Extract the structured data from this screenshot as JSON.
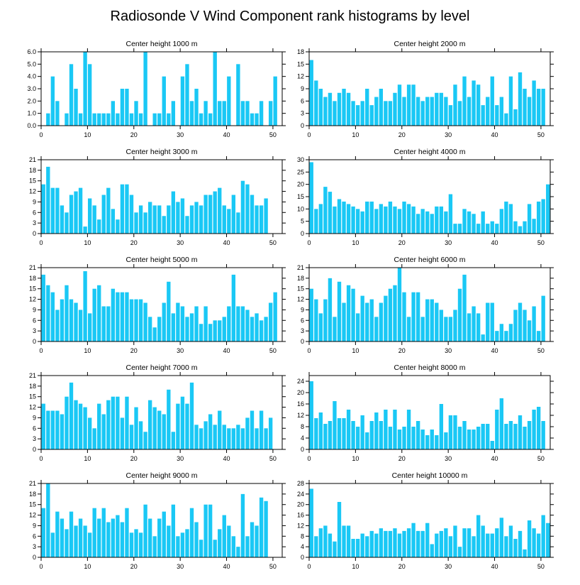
{
  "title": "Radiosonde V Wind Component rank histograms by level",
  "colors": {
    "bar": "#1ac8f5",
    "axis": "#000000"
  },
  "chart_data": [
    {
      "type": "bar",
      "title": "Center height 1000 m",
      "xlim": [
        0,
        52
      ],
      "ylim": [
        0,
        6
      ],
      "xticks": [
        0,
        10,
        20,
        30,
        40,
        50
      ],
      "xtick_labels": [
        "0",
        "10",
        "20",
        "30",
        "40",
        "50"
      ],
      "yticks": [
        0,
        1,
        2,
        3,
        4,
        5,
        6
      ],
      "ytick_labels": [
        "0.0",
        "1.0",
        "2.0",
        "3.0",
        "4.0",
        "5.0",
        "6.0"
      ],
      "values": [
        0,
        1,
        4,
        2,
        0,
        1,
        5,
        3,
        1,
        6,
        5,
        1,
        1,
        1,
        1,
        2,
        1,
        3,
        3,
        1,
        2,
        1,
        6,
        0,
        1,
        1,
        4,
        1,
        2,
        0,
        4,
        5,
        2,
        3,
        1,
        2,
        1,
        6,
        2,
        2,
        4,
        0,
        5,
        2,
        2,
        1,
        1,
        2,
        0,
        2,
        4,
        0
      ]
    },
    {
      "type": "bar",
      "title": "Center height 2000 m",
      "xlim": [
        0,
        52
      ],
      "ylim": [
        0,
        18
      ],
      "xticks": [
        0,
        10,
        20,
        30,
        40,
        50
      ],
      "xtick_labels": [
        "0",
        "10",
        "20",
        "30",
        "40",
        "50"
      ],
      "yticks": [
        0,
        3,
        6,
        9,
        12,
        15,
        18
      ],
      "ytick_labels": [
        "0",
        "3",
        "6",
        "9",
        "12",
        "15",
        "18"
      ],
      "values": [
        16,
        11,
        9,
        7,
        8,
        6,
        8,
        9,
        8,
        6,
        5,
        6,
        9,
        5,
        7,
        9,
        6,
        6,
        8,
        10,
        7,
        10,
        10,
        7,
        6,
        7,
        7,
        8,
        8,
        7,
        5,
        10,
        6,
        12,
        7,
        11,
        10,
        5,
        7,
        12,
        5,
        7,
        3,
        12,
        4,
        13,
        9,
        7,
        11,
        9,
        9
      ]
    },
    {
      "type": "bar",
      "title": "Center height 3000 m",
      "xlim": [
        0,
        52
      ],
      "ylim": [
        0,
        21
      ],
      "xticks": [
        0,
        10,
        20,
        30,
        40,
        50
      ],
      "xtick_labels": [
        "0",
        "10",
        "20",
        "30",
        "40",
        "50"
      ],
      "yticks": [
        0,
        3,
        6,
        9,
        12,
        15,
        18,
        21
      ],
      "ytick_labels": [
        "0",
        "3",
        "6",
        "9",
        "12",
        "15",
        "18",
        "21"
      ],
      "values": [
        14,
        19,
        13,
        13,
        8,
        6,
        11,
        12,
        13,
        2,
        10,
        8,
        4,
        11,
        13,
        7,
        4,
        14,
        14,
        11,
        6,
        8,
        6,
        9,
        8,
        8,
        5,
        8,
        12,
        9,
        10,
        5,
        8,
        9,
        8,
        11,
        11,
        12,
        13,
        8,
        7,
        11,
        6,
        15,
        14,
        11,
        8,
        8,
        10
      ]
    },
    {
      "type": "bar",
      "title": "Center height 4000 m",
      "xlim": [
        0,
        52
      ],
      "ylim": [
        0,
        30
      ],
      "xticks": [
        0,
        10,
        20,
        30,
        40,
        50
      ],
      "xtick_labels": [
        "0",
        "10",
        "20",
        "30",
        "40",
        "50"
      ],
      "yticks": [
        0,
        5,
        10,
        15,
        20,
        25,
        30
      ],
      "ytick_labels": [
        "0",
        "5",
        "10",
        "15",
        "20",
        "25",
        "30"
      ],
      "values": [
        29,
        10,
        12,
        19,
        17,
        11,
        14,
        13,
        12,
        11,
        10,
        9,
        13,
        13,
        10,
        12,
        11,
        13,
        11,
        10,
        13,
        12,
        11,
        8,
        10,
        9,
        8,
        11,
        11,
        9,
        16,
        4,
        4,
        10,
        9,
        8,
        4,
        9,
        4,
        5,
        4,
        10,
        13,
        12,
        5,
        3,
        5,
        12,
        6,
        13,
        14,
        20
      ]
    },
    {
      "type": "bar",
      "title": "Center height 5000 m",
      "xlim": [
        0,
        52
      ],
      "ylim": [
        0,
        21
      ],
      "xticks": [
        0,
        10,
        20,
        30,
        40,
        50
      ],
      "xtick_labels": [
        "0",
        "10",
        "20",
        "30",
        "40",
        "50"
      ],
      "yticks": [
        0,
        3,
        6,
        9,
        12,
        15,
        18,
        21
      ],
      "ytick_labels": [
        "0",
        "3",
        "6",
        "9",
        "12",
        "15",
        "18",
        "21"
      ],
      "values": [
        19,
        16,
        14,
        9,
        12,
        16,
        12,
        11,
        9,
        20,
        8,
        15,
        16,
        10,
        10,
        15,
        14,
        14,
        14,
        12,
        12,
        12,
        11,
        7,
        4,
        7,
        11,
        17,
        8,
        11,
        10,
        7,
        8,
        10,
        5,
        10,
        5,
        6,
        6,
        7,
        10,
        19,
        10,
        10,
        9,
        7,
        8,
        6,
        7,
        11,
        14
      ]
    },
    {
      "type": "bar",
      "title": "Center height 6000 m",
      "xlim": [
        0,
        52
      ],
      "ylim": [
        0,
        21
      ],
      "xticks": [
        0,
        10,
        20,
        30,
        40,
        50
      ],
      "xtick_labels": [
        "0",
        "10",
        "20",
        "30",
        "40",
        "50"
      ],
      "yticks": [
        0,
        3,
        6,
        9,
        12,
        15,
        18,
        21
      ],
      "ytick_labels": [
        "0",
        "3",
        "6",
        "9",
        "12",
        "15",
        "18",
        "21"
      ],
      "values": [
        15,
        12,
        8,
        12,
        18,
        7,
        17,
        11,
        16,
        15,
        8,
        13,
        11,
        12,
        7,
        11,
        13,
        15,
        16,
        21,
        14,
        7,
        14,
        14,
        7,
        12,
        12,
        11,
        9,
        7,
        7,
        9,
        15,
        19,
        8,
        10,
        8,
        2,
        11,
        11,
        3,
        5,
        3,
        5,
        9,
        11,
        9,
        6,
        10,
        3,
        13
      ]
    },
    {
      "type": "bar",
      "title": "Center height 7000 m",
      "xlim": [
        0,
        52
      ],
      "ylim": [
        0,
        21
      ],
      "xticks": [
        0,
        10,
        20,
        30,
        40,
        50
      ],
      "xtick_labels": [
        "0",
        "10",
        "20",
        "30",
        "40",
        "50"
      ],
      "yticks": [
        0,
        3,
        6,
        9,
        12,
        15,
        18,
        21
      ],
      "ytick_labels": [
        "0",
        "3",
        "6",
        "9",
        "12",
        "15",
        "18",
        "21"
      ],
      "values": [
        13,
        11,
        11,
        11,
        10,
        15,
        19,
        14,
        13,
        12,
        9,
        6,
        13,
        10,
        14,
        15,
        15,
        9,
        15,
        7,
        12,
        8,
        5,
        14,
        12,
        11,
        10,
        17,
        5,
        13,
        15,
        13,
        19,
        7,
        6,
        8,
        10,
        7,
        11,
        7,
        6,
        6,
        7,
        6,
        9,
        11,
        6,
        11,
        6,
        9
      ]
    },
    {
      "type": "bar",
      "title": "Center height 8000 m",
      "xlim": [
        0,
        52
      ],
      "ylim": [
        0,
        26
      ],
      "xticks": [
        0,
        10,
        20,
        30,
        40,
        50
      ],
      "xtick_labels": [
        "0",
        "10",
        "20",
        "30",
        "40",
        "50"
      ],
      "yticks": [
        0,
        4,
        8,
        12,
        16,
        20,
        24
      ],
      "ytick_labels": [
        "0",
        "4",
        "8",
        "12",
        "16",
        "20",
        "24"
      ],
      "values": [
        24,
        11,
        13,
        9,
        10,
        17,
        11,
        11,
        14,
        10,
        8,
        12,
        6,
        10,
        13,
        10,
        14,
        8,
        14,
        7,
        8,
        14,
        8,
        10,
        7,
        5,
        7,
        5,
        16,
        6,
        12,
        12,
        8,
        10,
        7,
        7,
        8,
        9,
        9,
        3,
        14,
        18,
        9,
        10,
        9,
        12,
        8,
        10,
        14,
        15,
        10
      ]
    },
    {
      "type": "bar",
      "title": "Center height 9000 m",
      "xlim": [
        0,
        52
      ],
      "ylim": [
        0,
        21
      ],
      "xticks": [
        0,
        10,
        20,
        30,
        40,
        50
      ],
      "xtick_labels": [
        "0",
        "10",
        "20",
        "30",
        "40",
        "50"
      ],
      "yticks": [
        0,
        3,
        6,
        9,
        12,
        15,
        18,
        21
      ],
      "ytick_labels": [
        "0",
        "3",
        "6",
        "9",
        "12",
        "15",
        "18",
        "21"
      ],
      "values": [
        14,
        21,
        7,
        13,
        11,
        8,
        13,
        9,
        11,
        9,
        7,
        14,
        11,
        14,
        10,
        11,
        12,
        10,
        14,
        7,
        8,
        7,
        15,
        11,
        6,
        11,
        13,
        9,
        15,
        6,
        7,
        8,
        14,
        10,
        5,
        15,
        15,
        5,
        8,
        12,
        9,
        6,
        3,
        18,
        6,
        10,
        9,
        17,
        16
      ]
    },
    {
      "type": "bar",
      "title": "Center height 10000 m",
      "xlim": [
        0,
        52
      ],
      "ylim": [
        0,
        28
      ],
      "xticks": [
        0,
        10,
        20,
        30,
        40,
        50
      ],
      "xtick_labels": [
        "0",
        "10",
        "20",
        "30",
        "40",
        "50"
      ],
      "yticks": [
        0,
        4,
        8,
        12,
        16,
        20,
        24,
        28
      ],
      "ytick_labels": [
        "0",
        "4",
        "8",
        "12",
        "16",
        "20",
        "24",
        "28"
      ],
      "values": [
        26,
        8,
        11,
        12,
        9,
        6,
        21,
        12,
        12,
        7,
        7,
        9,
        8,
        10,
        9,
        11,
        10,
        10,
        11,
        9,
        10,
        11,
        13,
        10,
        10,
        13,
        5,
        9,
        10,
        11,
        8,
        12,
        4,
        11,
        11,
        8,
        16,
        12,
        9,
        9,
        11,
        15,
        8,
        12,
        7,
        10,
        3,
        14,
        11,
        9,
        16,
        13
      ]
    }
  ]
}
